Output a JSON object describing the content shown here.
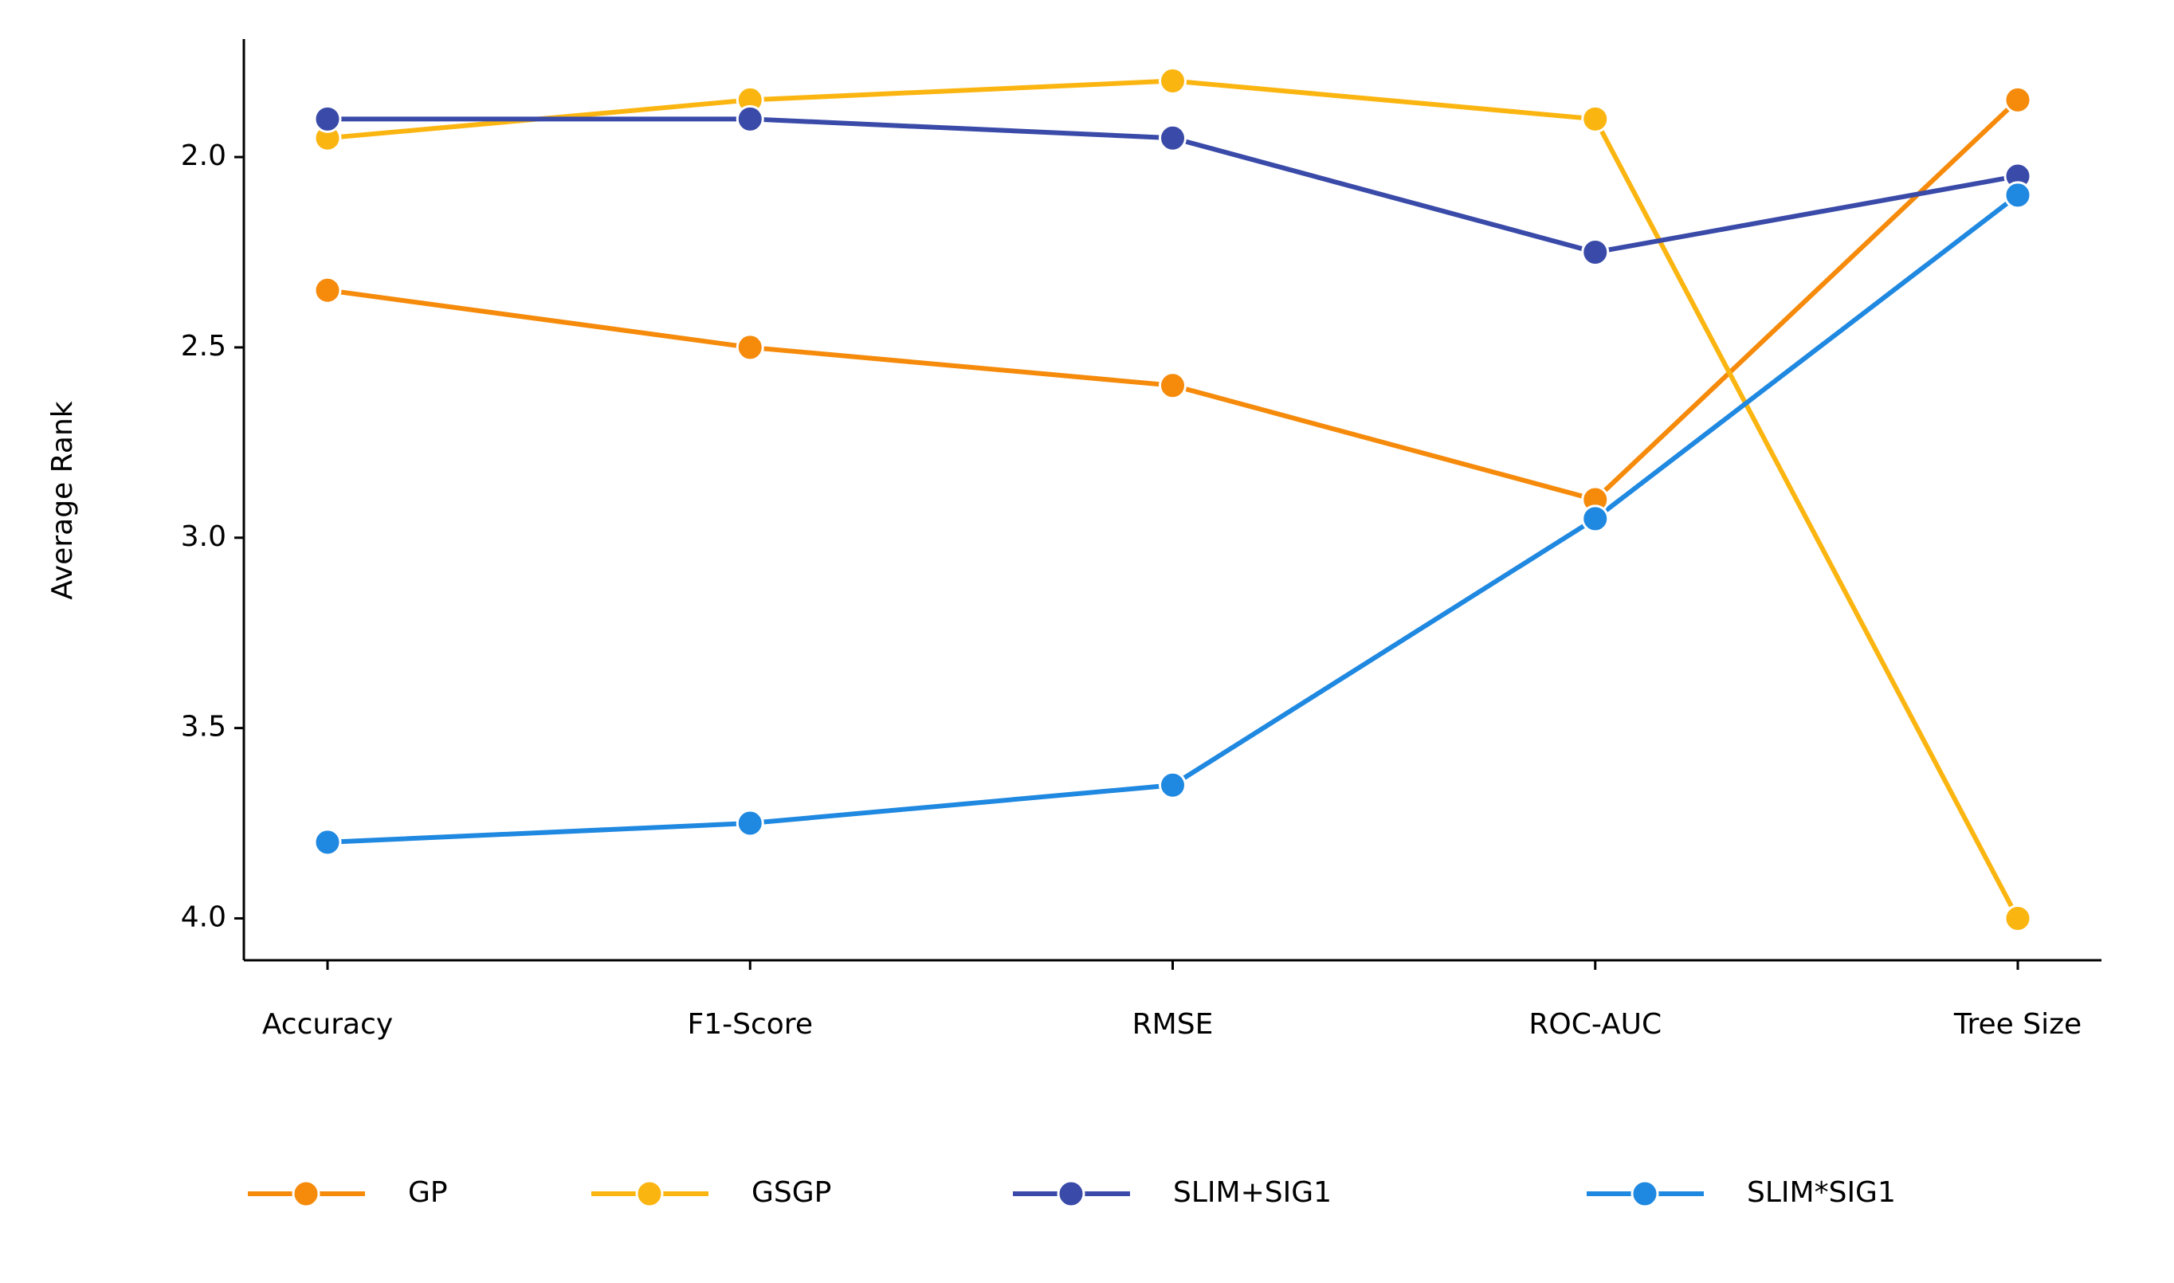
{
  "chart_data": {
    "type": "line",
    "y_label": "Average Rank",
    "categories": [
      "Accuracy",
      "F1-Score",
      "RMSE",
      "ROC-AUC",
      "Tree Size"
    ],
    "series": [
      {
        "name": "GP",
        "color": "#f58a0b",
        "values": [
          2.35,
          2.5,
          2.6,
          2.9,
          1.85
        ]
      },
      {
        "name": "GSGP",
        "color": "#fbb511",
        "values": [
          1.95,
          1.85,
          1.8,
          1.9,
          4.0
        ]
      },
      {
        "name": "SLIM+SIG1",
        "color": "#3a4aa8",
        "values": [
          1.9,
          1.9,
          1.95,
          2.25,
          2.05
        ]
      },
      {
        "name": "SLIM*SIG1",
        "color": "#1f88e0",
        "values": [
          3.8,
          3.75,
          3.65,
          2.95,
          2.1
        ]
      }
    ],
    "ylim": [
      4.11,
      1.69
    ],
    "yticks": [
      {
        "value": 2,
        "label": "2.0"
      },
      2.5,
      {
        "value": 3,
        "label": "3.0"
      },
      3.5,
      {
        "value": 4,
        "label": "4.0"
      }
    ],
    "grid": false,
    "legend": "bottom"
  }
}
